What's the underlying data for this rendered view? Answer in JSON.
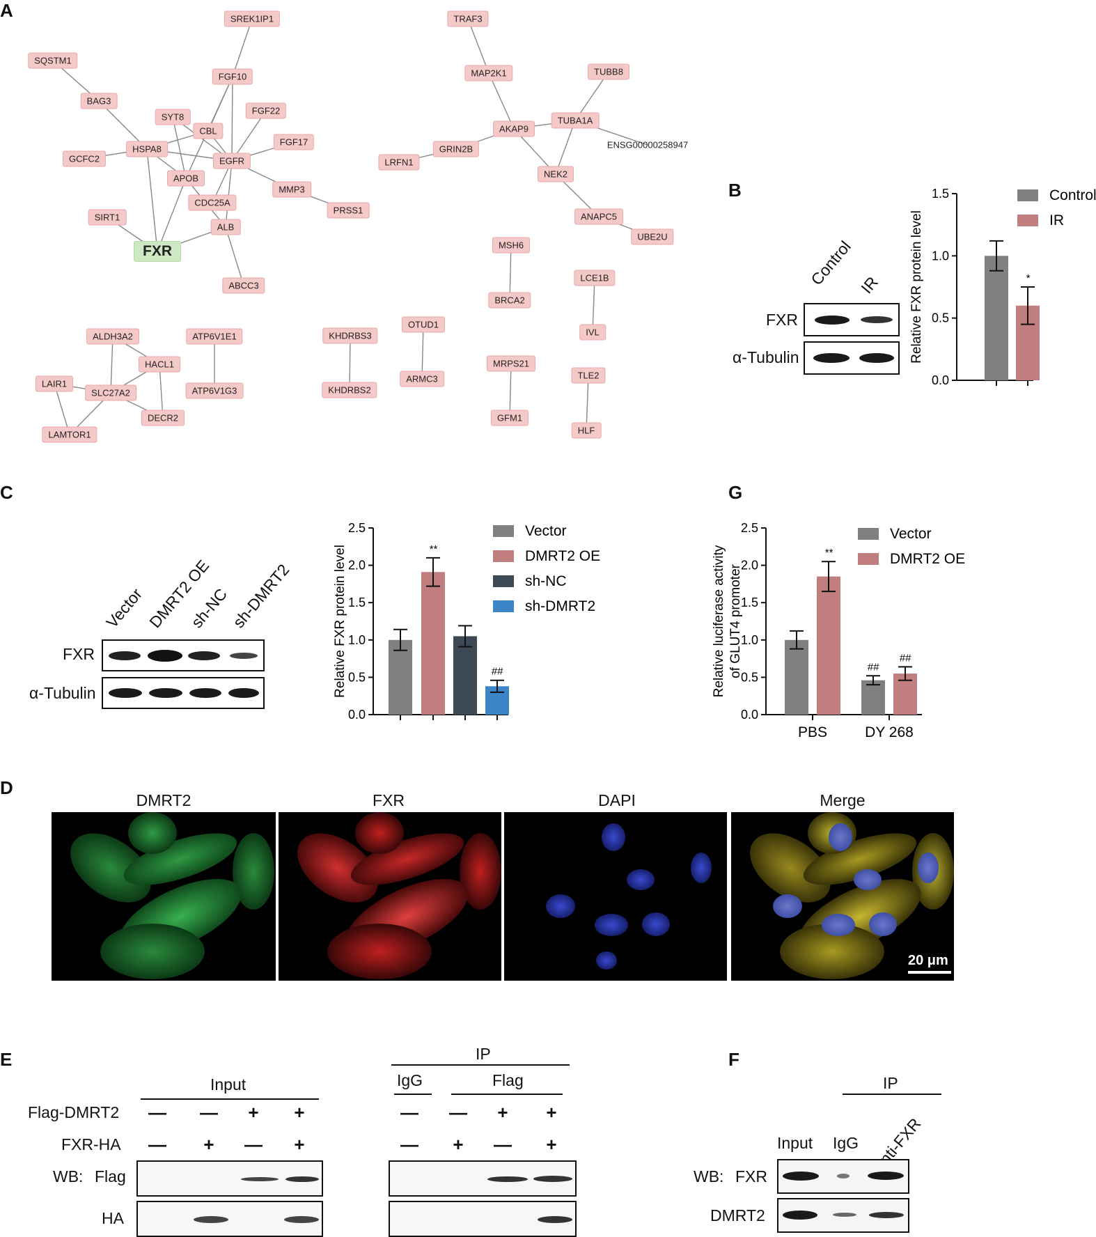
{
  "panels": {
    "a": "A",
    "b": "B",
    "c": "C",
    "d": "D",
    "e": "E",
    "f": "F",
    "g": "G"
  },
  "network": {
    "fxr_node": "FXR",
    "nodes": [
      "SREK1IP1",
      "SQSTM1",
      "FGF10",
      "BAG3",
      "FGF22",
      "SYT8",
      "CBL",
      "FGF17",
      "GCFC2",
      "HSPA8",
      "EGFR",
      "APOB",
      "MMP3",
      "CDC25A",
      "PRSS1",
      "SIRT1",
      "ALB",
      "ABCC3",
      "TRAF3",
      "MAP2K1",
      "TUBB8",
      "TUBA1A",
      "AKAP9",
      "ENSG00000258947",
      "GRIN2B",
      "LRFN1",
      "NEK2",
      "ANAPC5",
      "UBE2U",
      "MSH6",
      "BRCA2",
      "LCE1B",
      "IVL",
      "OTUD1",
      "ARMC3",
      "KHDRBS3",
      "KHDRBS2",
      "MRPS21",
      "GFM1",
      "TLE2",
      "HLF",
      "ALDH3A2",
      "ATP6V1E1",
      "HACL1",
      "LAIR1",
      "SLC27A2",
      "ATP6V1G3",
      "DECR2",
      "LAMTOR1"
    ]
  },
  "panel_b": {
    "blot_rows": [
      "FXR",
      "α-Tubulin"
    ],
    "lanes": [
      "Control",
      "IR"
    ],
    "chart_data": {
      "type": "bar",
      "categories": [
        "Control",
        "IR"
      ],
      "values": [
        1.0,
        0.6
      ],
      "errors": [
        0.12,
        0.15
      ],
      "significance": [
        "",
        "*"
      ],
      "ylabel": "Relative FXR protein level",
      "ylim": [
        0,
        1.5
      ],
      "yticks": [
        "0.0",
        "0.5",
        "1.0",
        "1.5"
      ],
      "legend": [
        "Control",
        "IR"
      ],
      "colors": [
        "#808080",
        "#c17e7e"
      ]
    }
  },
  "panel_c": {
    "blot_rows": [
      "FXR",
      "α-Tubulin"
    ],
    "lanes": [
      "Vector",
      "DMRT2 OE",
      "sh-NC",
      "sh-DMRT2"
    ],
    "chart_data": {
      "type": "bar",
      "categories": [
        "Vector",
        "DMRT2 OE",
        "sh-NC",
        "sh-DMRT2"
      ],
      "values": [
        1.0,
        1.91,
        1.05,
        0.38
      ],
      "errors": [
        0.14,
        0.19,
        0.14,
        0.08
      ],
      "significance": [
        "",
        "**",
        "",
        "##"
      ],
      "ylabel": "Relative FXR protein level",
      "ylim": [
        0,
        2.5
      ],
      "yticks": [
        "0.0",
        "0.5",
        "1.0",
        "1.5",
        "2.0",
        "2.5"
      ],
      "legend": [
        "Vector",
        "DMRT2 OE",
        "sh-NC",
        "sh-DMRT2"
      ],
      "colors": [
        "#808080",
        "#c17e7e",
        "#3d4a55",
        "#3d85c6"
      ]
    }
  },
  "panel_g": {
    "chart_data": {
      "type": "bar",
      "categories": [
        "PBS",
        "DY 268"
      ],
      "series": [
        {
          "name": "Vector",
          "values": [
            1.0,
            0.46
          ],
          "errors": [
            0.12,
            0.06
          ],
          "significance": [
            "",
            "##"
          ]
        },
        {
          "name": "DMRT2 OE",
          "values": [
            1.85,
            0.55
          ],
          "errors": [
            0.2,
            0.09
          ],
          "significance": [
            "**",
            "##"
          ]
        }
      ],
      "ylabel_line1": "Relative luciferase activity",
      "ylabel_line2": "of GLUT4 promoter",
      "ylim": [
        0,
        2.5
      ],
      "yticks": [
        "0.0",
        "0.5",
        "1.0",
        "1.5",
        "2.0",
        "2.5"
      ],
      "colors": [
        "#808080",
        "#c17e7e"
      ]
    }
  },
  "panel_d": {
    "titles": [
      "DMRT2",
      "FXR",
      "DAPI",
      "Merge"
    ],
    "scale_bar": "20 μm"
  },
  "panel_e": {
    "input_label": "Input",
    "ip_label": "IP",
    "igg_label": "IgG",
    "flag_label": "Flag",
    "row_flag_dmrt2": "Flag-DMRT2",
    "row_fxr_ha": "FXR-HA",
    "wb_label": "WB:",
    "blot_flag": "Flag",
    "blot_ha": "HA",
    "flag_signs": [
      "—",
      "—",
      "+",
      "+"
    ],
    "ha_signs": [
      "—",
      "+",
      "—",
      "+"
    ]
  },
  "panel_f": {
    "ip_label": "IP",
    "lanes": [
      "Input",
      "IgG",
      "anti-FXR"
    ],
    "wb_label": "WB:",
    "blot_fxr": "FXR",
    "blot_dmrt2": "DMRT2"
  }
}
